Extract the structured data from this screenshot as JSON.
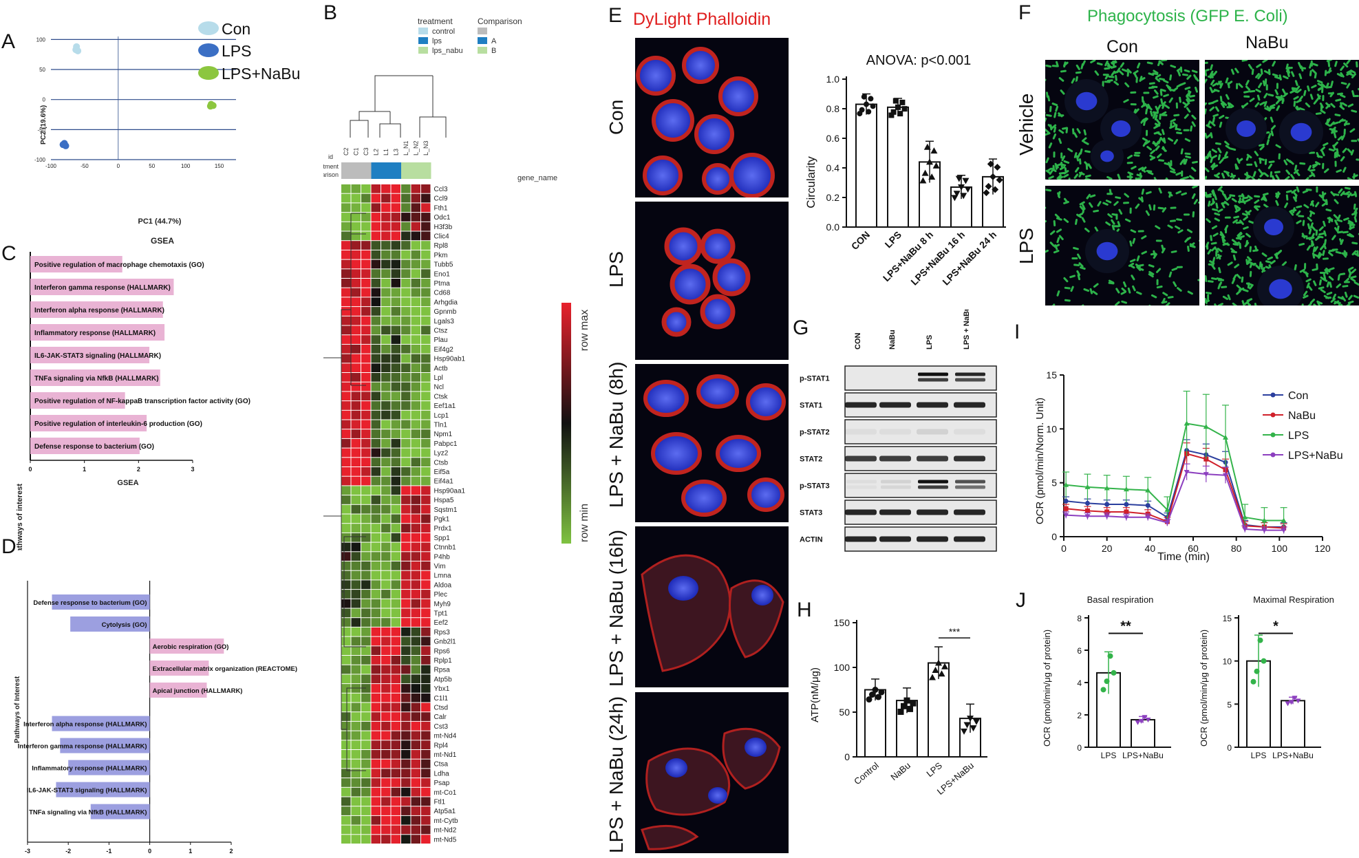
{
  "panel_letters": [
    "A",
    "B",
    "C",
    "D",
    "E",
    "F",
    "G",
    "H",
    "I",
    "J"
  ],
  "colors": {
    "con": "#b7dcea",
    "lps": "#3b6fc4",
    "lps_nabu": "#8cc63f",
    "gsea_pos": "#e9b3d4",
    "gsea_neg": "#9c9fe0",
    "heat_red": "#e8212c",
    "heat_green": "#7fc241",
    "phalloidin": "#e02020",
    "phago_green": "#2db34a",
    "seahorse_con": "#2b3f9e",
    "seahorse_nabu": "#d0202a",
    "seahorse_lps": "#33b34a",
    "seahorse_lpsnabu": "#8c3fbf"
  },
  "chart_data": [
    {
      "id": "A",
      "type": "scatter",
      "xlabel": "PC1 (44.7%)",
      "ylabel": "PC2 (19.6%)",
      "xticks": [
        "-100",
        "-50",
        "0",
        "50",
        "100",
        "150"
      ],
      "yticks": [
        "100",
        "50",
        "0",
        "-50",
        "-100"
      ],
      "xlim": [
        -100,
        175
      ],
      "ylim": [
        -100,
        105
      ],
      "legend": [
        "Con",
        "LPS",
        "LPS+NaBu"
      ],
      "series": [
        {
          "name": "Con",
          "points": [
            [
              -62,
              88
            ],
            [
              -60,
              81
            ],
            [
              -63,
              83
            ]
          ]
        },
        {
          "name": "LPS",
          "points": [
            [
              -80,
              -73
            ],
            [
              -78,
              -77
            ],
            [
              -82,
              -75
            ]
          ]
        },
        {
          "name": "LPS+NaBu",
          "points": [
            [
              138,
              -8
            ],
            [
              141,
              -10
            ],
            [
              137,
              -11
            ]
          ]
        }
      ]
    },
    {
      "id": "C",
      "type": "bar",
      "title": "GSEA",
      "ylabel": "Pathways of interest",
      "xticks": [
        "0",
        "1",
        "2",
        "3"
      ],
      "xlim": [
        0,
        3
      ],
      "categories": [
        "Positive regulation of macrophage chemotaxis (GO)",
        "Interferon gamma response (HALLMARK)",
        "Interferon alpha response (HALLMARK)",
        "Inflammatory response (HALLMARK)",
        "IL6-JAK-STAT3 signaling (HALLMARK)",
        "TNFa signaling via NfkB (HALLMARK)",
        "Positive regulation of NF-kappaB transcription factor activity (GO)",
        "Positive regulation of interleukin-6 production (GO)",
        "Defense response to bacterium (GO)"
      ],
      "values": [
        1.7,
        2.65,
        2.45,
        2.48,
        2.2,
        2.4,
        1.75,
        2.15,
        2.02
      ]
    },
    {
      "id": "D",
      "type": "bar",
      "title": "GSEA",
      "ylabel": "Pathways of Interest",
      "xticks": [
        "-3",
        "-2",
        "-1",
        "0",
        "1",
        "2"
      ],
      "xlim": [
        -3,
        2
      ],
      "categories": [
        "Defense response to bacterium (GO)",
        "Cytolysis (GO)",
        "Aerobic respiration (GO)",
        "Extracellular matrix organization (REACTOME)",
        "Apical junction (HALLMARK)",
        "Interferon alpha response (HALLMARK)",
        "Interferon gamma response (HALLMARK)",
        "Inflammatory response (HALLMARK)",
        "IL6-JAK-STAT3 signaling (HALLMARK)",
        "TNFa signaling via NfkB (HALLMARK)"
      ],
      "values": [
        -2.4,
        -1.95,
        1.82,
        1.45,
        1.4,
        -2.4,
        -2.2,
        -2.0,
        -2.3,
        -1.45
      ]
    },
    {
      "id": "E_circ",
      "type": "bar",
      "title": "ANOVA: p<0.001",
      "ylabel": "Circularity",
      "categories": [
        "CON",
        "LPS",
        "LPS+NaBu 8 h",
        "LPS+NaBu 16 h",
        "LPS+NaBu 24 h"
      ],
      "values": [
        0.83,
        0.81,
        0.44,
        0.27,
        0.34
      ],
      "errors": [
        0.07,
        0.06,
        0.14,
        0.08,
        0.12
      ],
      "ylim": [
        0,
        1.0
      ],
      "yticks": [
        "0.0",
        "0.2",
        "0.4",
        "0.6",
        "0.8",
        "1.0"
      ]
    },
    {
      "id": "H",
      "type": "bar",
      "ylabel": "ATP(nM/μg)",
      "categories": [
        "Control",
        "NaBu",
        "LPS",
        "LPS+NaBu"
      ],
      "values": [
        75,
        63,
        105,
        43
      ],
      "errors": [
        12,
        14,
        18,
        16
      ],
      "ylim": [
        0,
        150
      ],
      "yticks": [
        "0",
        "50",
        "100",
        "150"
      ],
      "annotation": "***"
    },
    {
      "id": "I",
      "type": "line",
      "ylabel": "OCR (pmol/min/Norm. Unit)",
      "xlabel": "Time (min)",
      "xlim": [
        0,
        120
      ],
      "ylim": [
        0,
        15
      ],
      "xticks": [
        "0",
        "20",
        "40",
        "60",
        "80",
        "100",
        "120"
      ],
      "yticks": [
        "0",
        "5",
        "10",
        "15"
      ],
      "x": [
        1,
        11,
        20,
        29,
        39,
        48,
        57,
        66,
        75,
        84,
        93,
        102
      ],
      "series": [
        {
          "name": "Con",
          "values": [
            3.3,
            3.1,
            3.0,
            3.0,
            2.9,
            1.8,
            8.0,
            7.6,
            6.9,
            1.1,
            0.9,
            0.9
          ]
        },
        {
          "name": "NaBu",
          "values": [
            2.6,
            2.4,
            2.3,
            2.3,
            2.1,
            1.4,
            7.7,
            7.2,
            6.2,
            1.0,
            0.9,
            0.8
          ]
        },
        {
          "name": "LPS",
          "values": [
            4.8,
            4.6,
            4.5,
            4.4,
            4.3,
            2.5,
            10.5,
            10.2,
            9.2,
            1.8,
            1.5,
            1.5
          ]
        },
        {
          "name": "LPS+NaBu",
          "values": [
            2.0,
            1.9,
            1.9,
            1.8,
            1.8,
            1.3,
            6.0,
            5.8,
            5.7,
            0.7,
            0.6,
            0.6
          ]
        }
      ]
    },
    {
      "id": "J_basal",
      "type": "bar",
      "title": "Basal respiration",
      "ylabel": "OCR (pmol/min/μg of protein)",
      "categories": [
        "LPS",
        "LPS+NaBu"
      ],
      "values": [
        4.6,
        1.7
      ],
      "errors": [
        1.3,
        0.2
      ],
      "ylim": [
        0,
        8
      ],
      "yticks": [
        "0",
        "2",
        "4",
        "6",
        "8"
      ],
      "annotation": "**"
    },
    {
      "id": "J_max",
      "type": "bar",
      "title": "Maximal Respiration",
      "ylabel": "OCR (pmol/min/μg of protein)",
      "categories": [
        "LPS",
        "LPS+NaBu"
      ],
      "values": [
        10.0,
        5.4
      ],
      "errors": [
        3.0,
        0.4
      ],
      "ylim": [
        0,
        15
      ],
      "yticks": [
        "0",
        "5",
        "10",
        "15"
      ],
      "annotation": "*"
    },
    {
      "id": "B",
      "type": "heatmap",
      "legend_title_top": "treatment",
      "legend_title_right": "Comparison",
      "treatment_legend": [
        "control",
        "lps",
        "lps_nabu"
      ],
      "comparison_legend": [
        "A",
        "B"
      ],
      "row_labels_left": [
        "id",
        "treatment",
        "Comparison"
      ],
      "columns": [
        "C2",
        "C1",
        "C3",
        "L2",
        "L1",
        "L3",
        "L_N1",
        "L_N2",
        "L_N3"
      ],
      "gene_name_header": "gene_name",
      "scale_max": "row max",
      "scale_min": "row min",
      "genes": [
        "Ccl3",
        "Ccl9",
        "Fth1",
        "Odc1",
        "H3f3b",
        "Clic4",
        "Rpl8",
        "Pkm",
        "Tubb5",
        "Eno1",
        "Ptma",
        "Cd68",
        "Arhgdia",
        "Gpnmb",
        "Lgals3",
        "Ctsz",
        "Plau",
        "Eif4g2",
        "Hsp90ab1",
        "Actb",
        "Lpl",
        "Ncl",
        "Ctsk",
        "Eef1a1",
        "Lcp1",
        "Tln1",
        "Npm1",
        "Pabpc1",
        "Lyz2",
        "Ctsb",
        "Eif5a",
        "Eif4a1",
        "Hsp90aa1",
        "Hspa5",
        "Sqstm1",
        "Pgk1",
        "Prdx1",
        "Spp1",
        "Ctnnb1",
        "P4hb",
        "Vim",
        "Lmna",
        "Aldoa",
        "Plec",
        "Myh9",
        "Tpt1",
        "Eef2",
        "Rps3",
        "Gnb2l1",
        "Rps6",
        "Rplp1",
        "Rpsa",
        "Atp5b",
        "Ybx1",
        "C1l1",
        "Ctsd",
        "Calr",
        "Cst3",
        "mt-Nd4",
        "Rpl4",
        "mt-Nd1",
        "Ctsa",
        "Ldha",
        "Psap",
        "mt-Co1",
        "Ftl1",
        "Atp5a1",
        "mt-Cytb",
        "mt-Nd2",
        "mt-Nd5"
      ]
    },
    {
      "id": "G",
      "type": "table",
      "lanes": [
        "CON",
        "NaBu",
        "LPS",
        "LPS + NaBu"
      ],
      "rows": [
        "p-STAT1",
        "STAT1",
        "p-STAT2",
        "STAT2",
        "p-STAT3",
        "STAT3",
        "ACTIN"
      ]
    }
  ],
  "microscopy_E": {
    "title": "DyLight Phalloidin",
    "rows": [
      "Con",
      "LPS",
      "LPS + NaBu (8h)",
      "LPS + NaBu (16h)",
      "LPS + NaBu (24h)"
    ]
  },
  "microscopy_F": {
    "title": "Phagocytosis  (GFP E. Coli)",
    "cols": [
      "Con",
      "NaBu"
    ],
    "rows": [
      "Vehicle",
      "LPS"
    ]
  }
}
